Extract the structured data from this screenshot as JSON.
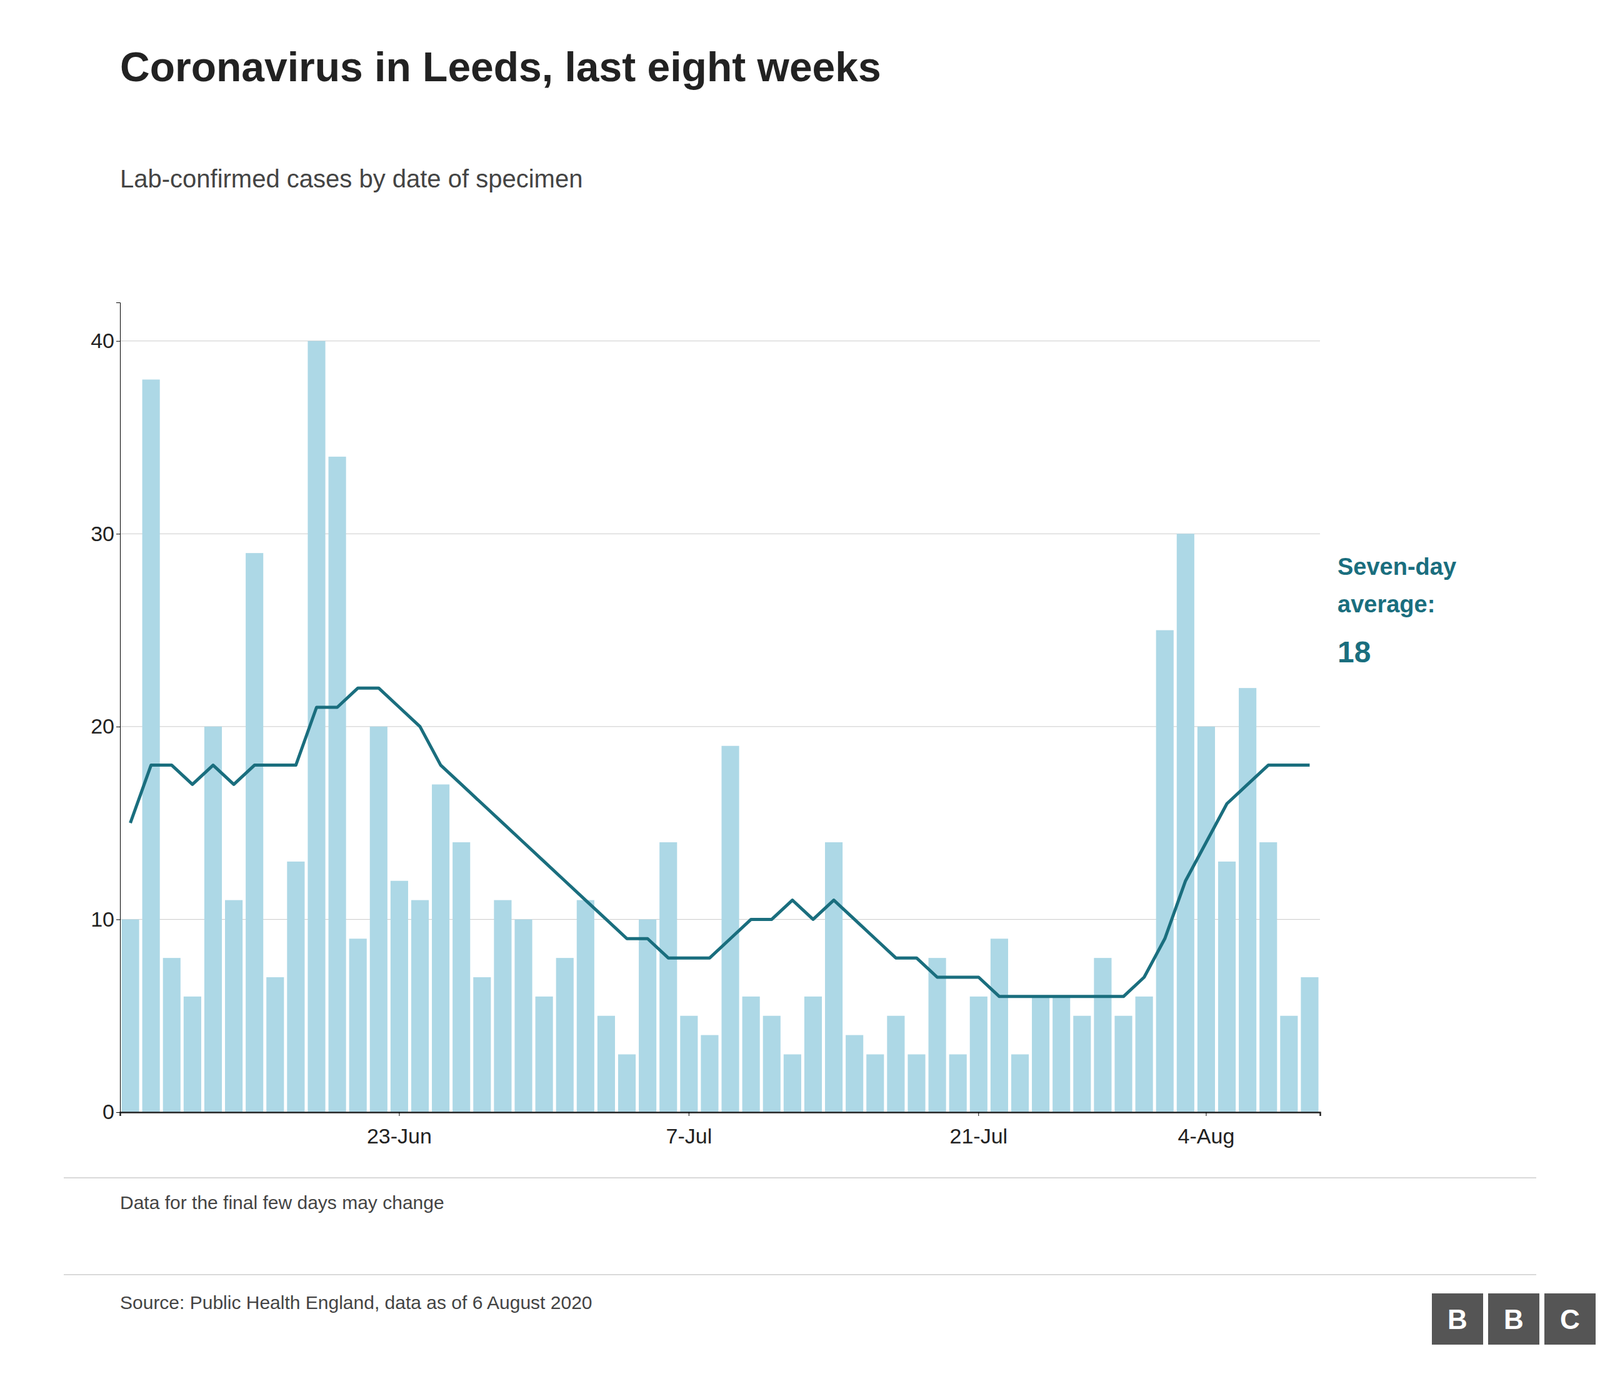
{
  "chart_data": {
    "type": "bar",
    "title": "Coronavirus in Leeds, last eight weeks",
    "subtitle": "Lab-confirmed cases by date of specimen",
    "annotations": [
      "Seven-day",
      "average:",
      "18"
    ],
    "footnote": "Data for the final few days may change",
    "source": "Source: Public Health England, data as of 6 August 2020",
    "logo": [
      "B",
      "B",
      "C"
    ],
    "categories": [
      null,
      null,
      null,
      null,
      null,
      null,
      null,
      null,
      null,
      null,
      null,
      null,
      null,
      "23-Jun",
      null,
      null,
      null,
      null,
      null,
      null,
      null,
      null,
      null,
      null,
      null,
      null,
      null,
      "7-Jul",
      null,
      null,
      null,
      null,
      null,
      null,
      null,
      null,
      null,
      null,
      null,
      null,
      null,
      "21-Jul",
      null,
      null,
      null,
      null,
      null,
      null,
      null,
      null,
      null,
      null,
      "4-Aug",
      null,
      null,
      null,
      null,
      null
    ],
    "series": [
      {
        "type": "bar",
        "color": "#add8e6",
        "values": [
          10,
          38,
          8,
          6,
          20,
          11,
          29,
          7,
          13,
          40,
          34,
          9,
          20,
          12,
          11,
          17,
          14,
          7,
          11,
          10,
          6,
          8,
          11,
          5,
          3,
          10,
          14,
          5,
          4,
          19,
          6,
          5,
          3,
          6,
          14,
          4,
          3,
          5,
          3,
          8,
          3,
          6,
          9,
          3,
          6,
          6,
          5,
          8,
          5,
          6,
          25,
          30,
          20,
          13,
          22,
          14,
          5,
          7
        ]
      },
      {
        "type": "line",
        "color": "#1a6e7e",
        "values": [
          15,
          18,
          18,
          17,
          18,
          17,
          18,
          18,
          18,
          21,
          21,
          22,
          22,
          21,
          20,
          18,
          17,
          16,
          15,
          14,
          13,
          12,
          11,
          10,
          9,
          9,
          8,
          8,
          8,
          9,
          10,
          10,
          11,
          10,
          11,
          10,
          9,
          8,
          8,
          7,
          7,
          7,
          6,
          6,
          6,
          6,
          6,
          6,
          6,
          7,
          9,
          12,
          14,
          16,
          17,
          18,
          18,
          18
        ]
      }
    ],
    "ylim": [
      0,
      42
    ],
    "yticks": [
      0,
      10,
      20,
      30,
      40
    ],
    "grid": true
  }
}
